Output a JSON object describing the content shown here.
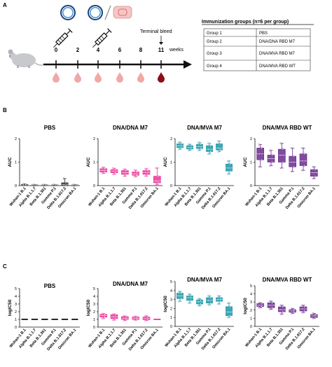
{
  "panels": {
    "A": "A",
    "B": "B",
    "C": "C"
  },
  "timeline": {
    "weeks": [
      "0",
      "2",
      "4",
      "6",
      "8",
      "11"
    ],
    "unit": "weeks",
    "terminal_label": "Terminal bleed"
  },
  "table": {
    "title": "Immunization groups (n=6 per group)",
    "rows": [
      [
        "Group 1",
        "PBS"
      ],
      [
        "Group 2",
        "DNA/DNA RBD M7"
      ],
      [
        "Group 3",
        "DNA/MVA RBD M7"
      ],
      [
        "Group 4",
        "DNA/MVA RBD WT"
      ]
    ]
  },
  "colors": {
    "pbs": "#333333",
    "dnadna": "#e8359a",
    "dnamva_m7": "#1f96a8",
    "dnamva_wt": "#6b2d8e",
    "blood": "#f0a8a8",
    "blood_dark": "#8b0d18"
  },
  "icons": [
    "mouse-icon",
    "dna-plasmid-icon",
    "mva-virus-icon",
    "syringe-icon",
    "blood-drop-icon"
  ],
  "variants": [
    "Wuhan-1 B.1",
    "Alpha B.1.1.7",
    "Beta B.1.351",
    "Gamma P.1",
    "Delta B.1.617.2",
    "Omicron BA.1"
  ],
  "chart_data": [
    {
      "type": "box",
      "panel": "B",
      "title": "PBS",
      "ylabel": "AUC",
      "ylim": [
        0,
        2
      ],
      "yticks": [
        0,
        1,
        2
      ],
      "color": "#333333",
      "boxes": [
        [
          0.01,
          0.02,
          0.03,
          0.05,
          0.07
        ],
        [
          0.0,
          0.01,
          0.02,
          0.03,
          0.04
        ],
        [
          0.0,
          0.01,
          0.02,
          0.03,
          0.04
        ],
        [
          0.0,
          0.01,
          0.02,
          0.03,
          0.04
        ],
        [
          0.0,
          0.02,
          0.04,
          0.12,
          0.3
        ],
        [
          0.0,
          0.01,
          0.02,
          0.03,
          0.04
        ]
      ]
    },
    {
      "type": "box",
      "panel": "B",
      "title": "DNA/DNA M7",
      "ylabel": "AUC",
      "ylim": [
        0,
        2
      ],
      "yticks": [
        0,
        1,
        2
      ],
      "color": "#e8359a",
      "boxes": [
        [
          0.52,
          0.58,
          0.65,
          0.72,
          0.78
        ],
        [
          0.48,
          0.55,
          0.62,
          0.68,
          0.74
        ],
        [
          0.4,
          0.48,
          0.55,
          0.64,
          0.7
        ],
        [
          0.38,
          0.44,
          0.5,
          0.58,
          0.66
        ],
        [
          0.4,
          0.48,
          0.56,
          0.64,
          0.72
        ],
        [
          0.05,
          0.12,
          0.2,
          0.4,
          0.75
        ]
      ]
    },
    {
      "type": "box",
      "panel": "B",
      "title": "DNA/MVA M7",
      "ylabel": "AUC",
      "ylim": [
        0,
        2
      ],
      "yticks": [
        0,
        1,
        2
      ],
      "color": "#1f96a8",
      "boxes": [
        [
          1.55,
          1.62,
          1.7,
          1.78,
          1.85
        ],
        [
          1.5,
          1.56,
          1.62,
          1.7,
          1.76
        ],
        [
          1.5,
          1.58,
          1.66,
          1.76,
          1.84
        ],
        [
          1.35,
          1.45,
          1.55,
          1.7,
          1.8
        ],
        [
          1.45,
          1.52,
          1.6,
          1.78,
          1.9
        ],
        [
          0.5,
          0.62,
          0.75,
          0.92,
          1.05
        ]
      ]
    },
    {
      "type": "box",
      "panel": "B",
      "title": "DNA/MVA RBD WT",
      "ylabel": "AUC",
      "ylim": [
        0,
        2
      ],
      "yticks": [
        0,
        1,
        2
      ],
      "color": "#6b2d8e",
      "boxes": [
        [
          0.8,
          1.1,
          1.35,
          1.6,
          1.75
        ],
        [
          0.85,
          1.0,
          1.15,
          1.3,
          1.5
        ],
        [
          0.75,
          1.0,
          1.3,
          1.55,
          1.8
        ],
        [
          0.6,
          0.8,
          1.0,
          1.25,
          1.6
        ],
        [
          0.65,
          0.85,
          1.05,
          1.35,
          1.6
        ],
        [
          0.3,
          0.4,
          0.55,
          0.68,
          0.8
        ]
      ]
    },
    {
      "type": "box",
      "panel": "C",
      "title": "PBS",
      "ylabel": "logIC50",
      "ylim": [
        0,
        5
      ],
      "yticks": [
        0,
        1,
        2,
        3,
        4,
        5
      ],
      "color": "#111111",
      "boxes": [
        [
          1,
          1,
          1,
          1,
          1
        ],
        [
          1,
          1,
          1,
          1,
          1
        ],
        [
          1,
          1,
          1,
          1,
          1
        ],
        [
          1,
          1,
          1,
          1,
          1
        ],
        [
          1,
          1,
          1,
          1,
          1
        ],
        [
          1,
          1,
          1,
          1,
          1
        ]
      ]
    },
    {
      "type": "box",
      "panel": "C",
      "title": "DNA/DNA M7",
      "ylabel": "logIC50",
      "ylim": [
        0,
        5
      ],
      "yticks": [
        0,
        1,
        2,
        3,
        4,
        5
      ],
      "color": "#e8359a",
      "boxes": [
        [
          1.1,
          1.3,
          1.5,
          1.65,
          1.75
        ],
        [
          0.9,
          1.1,
          1.35,
          1.6,
          1.7
        ],
        [
          0.85,
          1.0,
          1.15,
          1.35,
          1.45
        ],
        [
          0.9,
          1.0,
          1.15,
          1.3,
          1.4
        ],
        [
          0.85,
          0.95,
          1.1,
          1.3,
          1.45
        ],
        [
          1.0,
          1.0,
          1.0,
          1.0,
          1.0
        ]
      ]
    },
    {
      "type": "box",
      "panel": "C",
      "title": "DNA/MVA M7",
      "ylabel": "logIC50",
      "ylim": [
        0,
        5
      ],
      "yticks": [
        0,
        1,
        2,
        3,
        4,
        5
      ],
      "color": "#1f96a8",
      "boxes": [
        [
          2.8,
          3.1,
          3.4,
          3.7,
          3.9
        ],
        [
          2.6,
          2.9,
          3.2,
          3.4,
          3.6
        ],
        [
          2.3,
          2.5,
          2.75,
          2.95,
          3.1
        ],
        [
          2.4,
          2.6,
          2.9,
          3.2,
          3.4
        ],
        [
          2.5,
          2.8,
          3.0,
          3.2,
          3.4
        ],
        [
          1.0,
          1.2,
          1.6,
          2.2,
          2.6
        ]
      ]
    },
    {
      "type": "box",
      "panel": "C",
      "title": "DNA/MVA RBD WT",
      "ylabel": "logIC50",
      "ylim": [
        0,
        5
      ],
      "yticks": [
        0,
        1,
        2,
        3,
        4,
        5
      ],
      "color": "#6b2d8e",
      "boxes": [
        [
          2.3,
          2.45,
          2.6,
          2.8,
          2.9
        ],
        [
          2.1,
          2.3,
          2.6,
          2.9,
          3.1
        ],
        [
          1.5,
          1.8,
          2.05,
          2.4,
          2.6
        ],
        [
          1.6,
          1.75,
          1.9,
          2.05,
          2.2
        ],
        [
          1.7,
          1.9,
          2.15,
          2.4,
          2.6
        ],
        [
          1.0,
          1.1,
          1.3,
          1.45,
          1.6
        ]
      ]
    }
  ]
}
